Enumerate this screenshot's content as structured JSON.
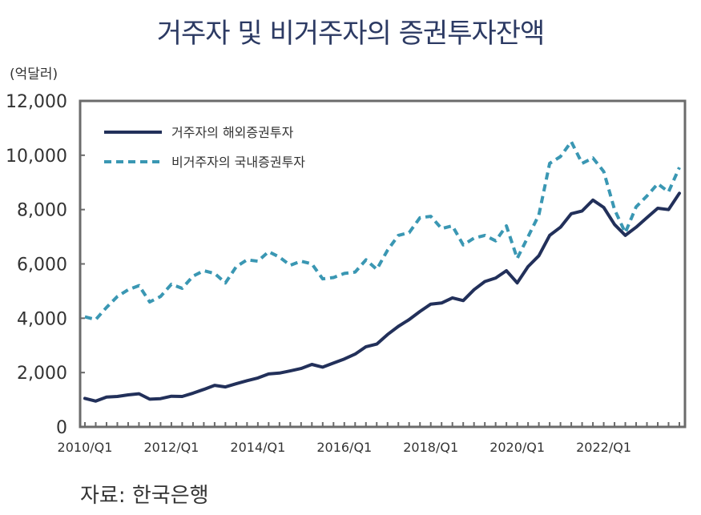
{
  "header": {
    "title": "거주자 및 비거주자의 증권투자잔액"
  },
  "unit_label": "(억달러)",
  "source_text": "자료: 한국은행",
  "chart_data": {
    "type": "line",
    "title": "거주자 및 비거주자의 증권투자잔액",
    "ylabel": "(억달러)",
    "ylim": [
      0,
      12000
    ],
    "yticks": [
      0,
      2000,
      4000,
      6000,
      8000,
      10000,
      12000
    ],
    "ytick_labels": [
      "0",
      "2,000",
      "4,000",
      "6,000",
      "8,000",
      "10,000",
      "12,000"
    ],
    "xtick_labels": [
      "2010/Q1",
      "2012/Q1",
      "2014/Q1",
      "2016/Q1",
      "2018/Q1",
      "2020/Q1",
      "2022/Q1"
    ],
    "xtick_index": [
      0,
      8,
      16,
      24,
      32,
      40,
      48
    ],
    "n_points": 56,
    "legend_position": "top-left",
    "series": [
      {
        "name": "거주자의 해외증권투자",
        "color": "#22305a",
        "style": "solid",
        "values": [
          1050,
          950,
          1100,
          1120,
          1180,
          1220,
          1020,
          1040,
          1130,
          1120,
          1240,
          1380,
          1530,
          1470,
          1590,
          1700,
          1800,
          1950,
          1980,
          2060,
          2150,
          2300,
          2200,
          2350,
          2500,
          2680,
          2950,
          3050,
          3400,
          3700,
          3950,
          4250,
          4520,
          4560,
          4750,
          4650,
          5050,
          5350,
          5480,
          5750,
          5300,
          5900,
          6300,
          7050,
          7350,
          7850,
          7950,
          8350,
          8080,
          7450,
          7050,
          7350,
          7700,
          8050,
          8000,
          8600
        ]
      },
      {
        "name": "비거주자의 국내증권투자",
        "color": "#3a97b3",
        "style": "dashed",
        "values": [
          4050,
          3950,
          4400,
          4800,
          5050,
          5200,
          4600,
          4800,
          5250,
          5100,
          5550,
          5750,
          5650,
          5300,
          5900,
          6150,
          6100,
          6450,
          6250,
          5950,
          6100,
          6000,
          5450,
          5500,
          5650,
          5700,
          6150,
          5800,
          6500,
          7050,
          7150,
          7700,
          7750,
          7300,
          7400,
          6700,
          6950,
          7050,
          6850,
          7400,
          6200,
          7000,
          7800,
          9700,
          9950,
          10500,
          9700,
          9900,
          9400,
          8000,
          7150,
          8100,
          8500,
          8950,
          8650,
          9550
        ]
      }
    ]
  }
}
